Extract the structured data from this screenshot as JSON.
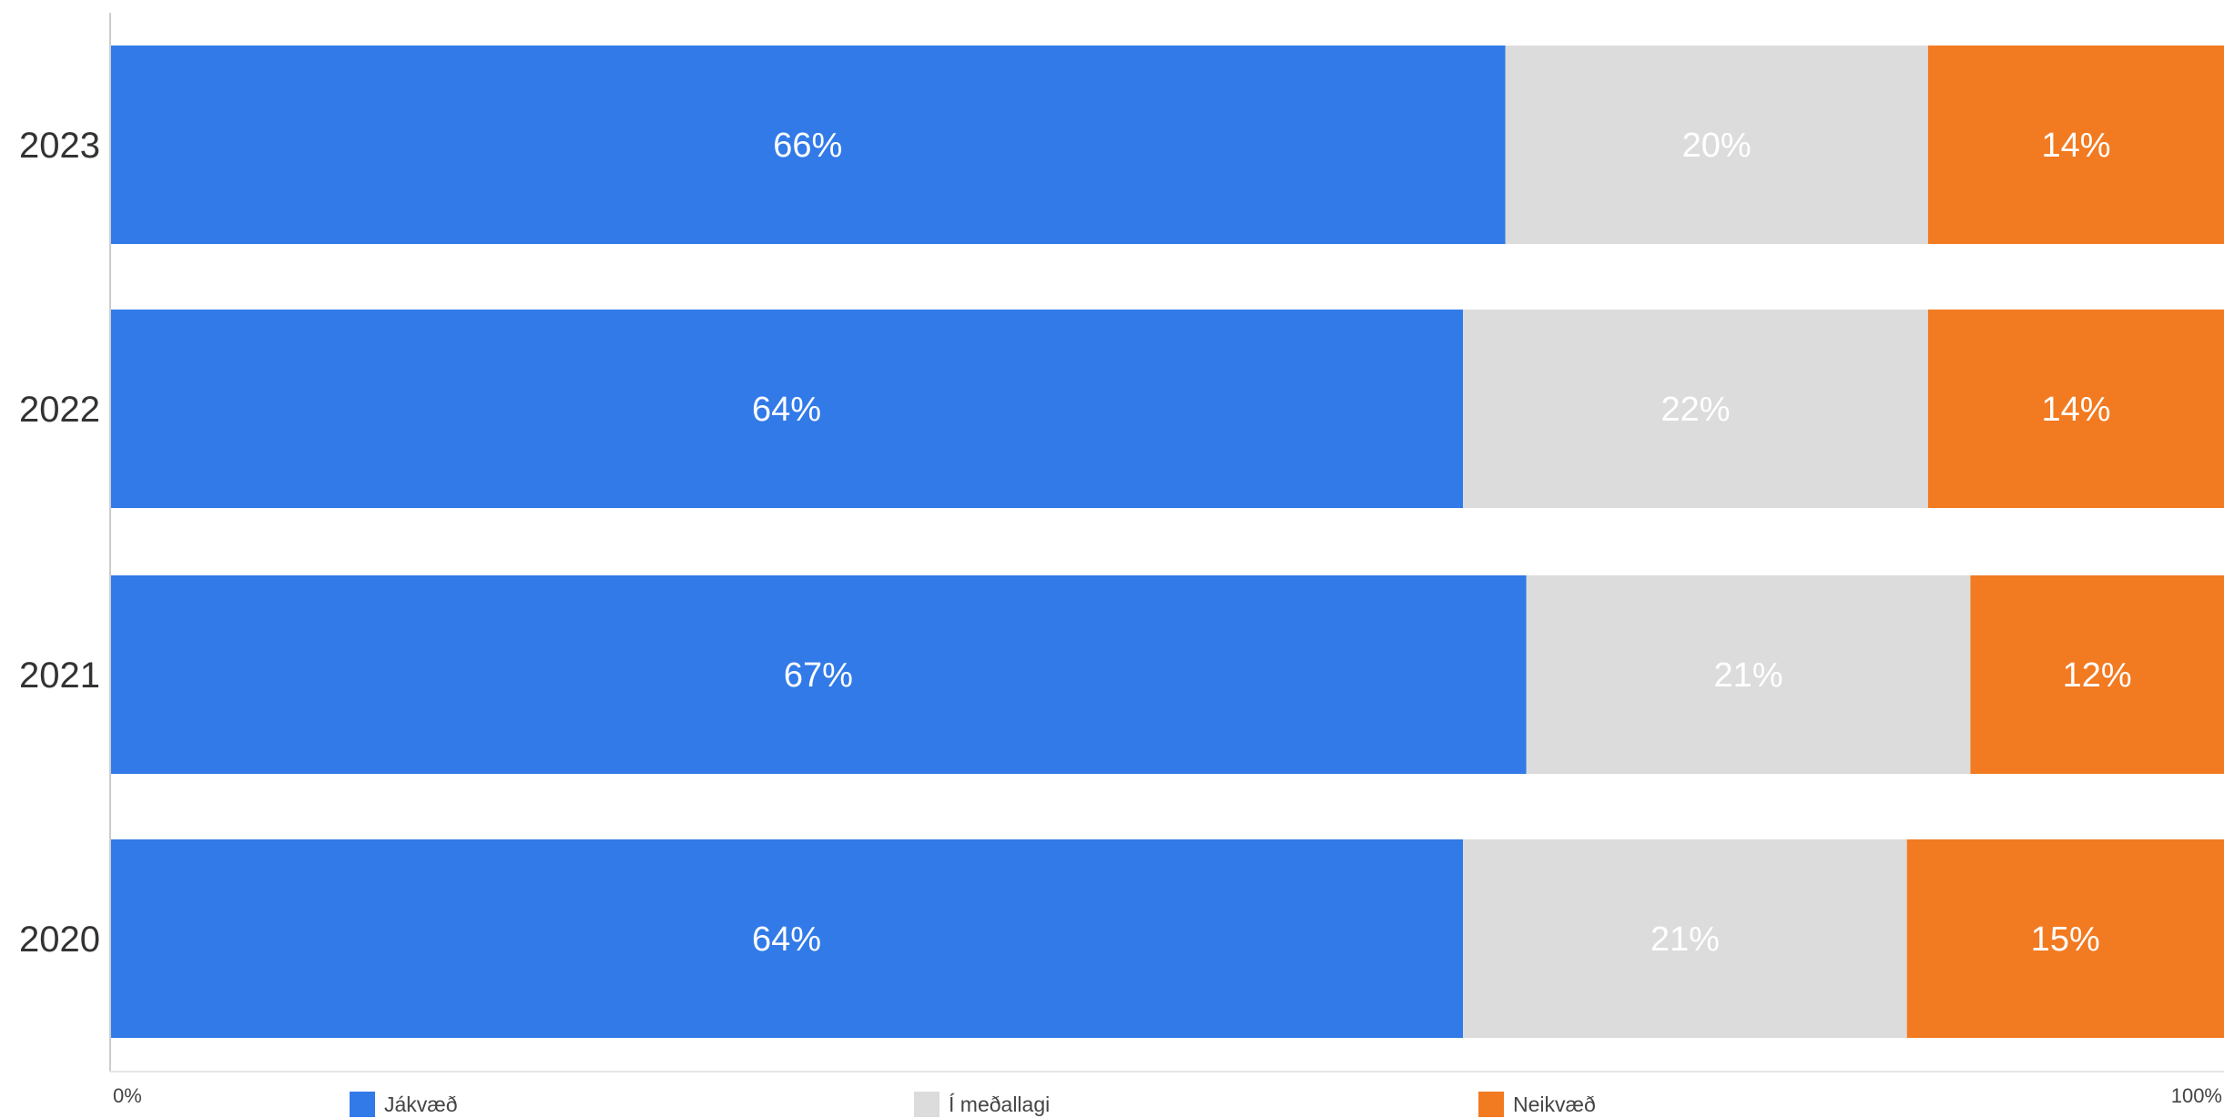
{
  "chart_data": {
    "type": "bar",
    "orientation": "horizontal",
    "stacked": true,
    "normalized": true,
    "categories": [
      "2023",
      "2022",
      "2021",
      "2020"
    ],
    "series": [
      {
        "name": "Jákvæð",
        "color": "#317AE8",
        "values": [
          66,
          64,
          67,
          64
        ],
        "labels": [
          "66%",
          "64%",
          "67%",
          "64%"
        ]
      },
      {
        "name": "Í meðallagi",
        "color": "#DCDCDC",
        "values": [
          20,
          22,
          21,
          21
        ],
        "labels": [
          "20%",
          "22%",
          "21%",
          "21%"
        ]
      },
      {
        "name": "Neikvæð",
        "color": "#F27A21",
        "values": [
          14,
          14,
          12,
          15
        ],
        "labels": [
          "14%",
          "14%",
          "12%",
          "15%"
        ]
      }
    ],
    "xlim": [
      0,
      100
    ],
    "x_ticks": [
      "0%",
      "100%"
    ],
    "grid": false,
    "legend_position": "bottom"
  }
}
